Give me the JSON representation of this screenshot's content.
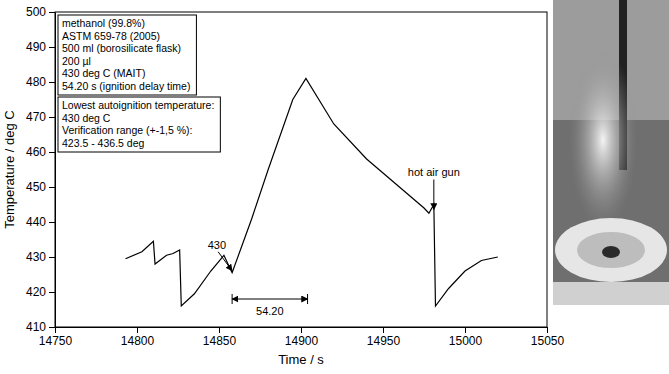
{
  "chart_data": {
    "type": "line",
    "x_label": "Time / s",
    "y_label": "Temperature / deg C",
    "xlim": [
      14750,
      15050
    ],
    "xticks": [
      14750,
      14800,
      14850,
      14900,
      14950,
      15000,
      15050
    ],
    "ylim": [
      410,
      500
    ],
    "yticks": [
      410,
      420,
      430,
      440,
      450,
      460,
      470,
      480,
      490,
      500
    ],
    "x": [
      14793,
      14803,
      14810,
      14811,
      14818,
      14822,
      14826,
      14827,
      14835,
      14845,
      14853,
      14858,
      14870,
      14880,
      14895,
      14903,
      14920,
      14940,
      14960,
      14975,
      14978,
      14981,
      14982,
      14990,
      15000,
      15010,
      15020
    ],
    "series": [
      {
        "color": "#000000",
        "values": [
          429.5,
          431.5,
          434.5,
          428,
          430.5,
          431,
          432,
          416,
          419.5,
          426,
          430.5,
          425.5,
          441,
          455,
          475,
          481,
          468,
          458,
          450,
          444,
          442.5,
          445,
          416,
          421,
          426,
          429,
          430
        ]
      }
    ],
    "text_boxes": [
      [
        "methanol (99.8%)",
        "ASTM 659-78 (2005)",
        "500 ml (borosilicate flask)",
        "200 µl",
        "430 deg C (MAIT)",
        "54.20 s (ignition delay time)"
      ],
      [
        "Lowest autoignition temperature:",
        "430 deg C",
        "Verification range (+-1,5 %):",
        "423.5 - 436.5 deg"
      ]
    ],
    "annotations": [
      {
        "text": "430",
        "x": 14858,
        "y": 425.5
      },
      {
        "text": "54.20",
        "x": [
          14858,
          14904
        ],
        "y": 418
      },
      {
        "text": "hot air gun",
        "x": 14981,
        "y": 443
      }
    ]
  }
}
